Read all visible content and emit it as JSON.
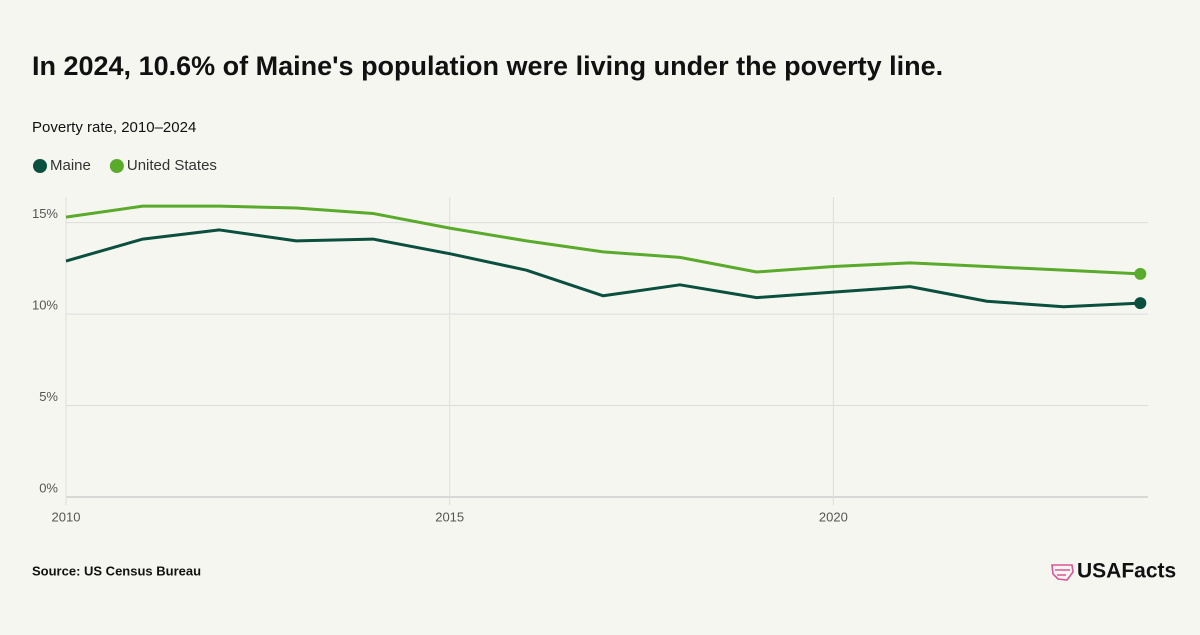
{
  "chart_data": {
    "type": "line",
    "title": "In 2024, 10.6% of Maine's population were living under the poverty line.",
    "subtitle": "Poverty rate, 2010–2024",
    "x": [
      2010,
      2011,
      2012,
      2013,
      2014,
      2015,
      2016,
      2017,
      2018,
      2019,
      2020,
      2021,
      2022,
      2023,
      2024
    ],
    "series": [
      {
        "name": "Maine",
        "color": "#0b4f3f",
        "values": [
          12.9,
          14.1,
          14.6,
          14.0,
          14.1,
          13.3,
          12.4,
          11.0,
          11.6,
          10.9,
          11.2,
          11.5,
          10.7,
          10.4,
          10.6
        ]
      },
      {
        "name": "United States",
        "color": "#5aaa2b",
        "values": [
          15.3,
          15.9,
          15.9,
          15.8,
          15.5,
          14.7,
          14.0,
          13.4,
          13.1,
          12.3,
          12.6,
          12.8,
          12.6,
          12.4,
          12.2
        ]
      }
    ],
    "xlim": [
      2010,
      2024.1
    ],
    "xticks": [
      2010,
      2015,
      2020
    ],
    "ylim": [
      0,
      16.4
    ],
    "yticks": [
      {
        "value": 0,
        "label": "0%"
      },
      {
        "value": 5,
        "label": "5%"
      },
      {
        "value": 10,
        "label": "10%"
      },
      {
        "value": 15,
        "label": "15%"
      }
    ],
    "grid": true,
    "legend": "top-left",
    "source": "Source: US Census Bureau",
    "logo": "USAFacts"
  }
}
